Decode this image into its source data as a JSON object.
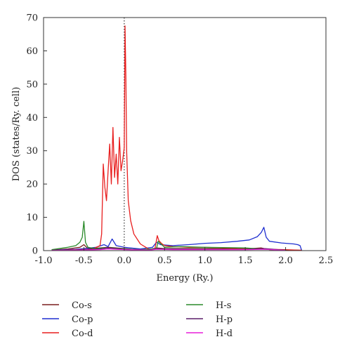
{
  "chart_data": {
    "type": "line",
    "xlabel": "Energy (Ry.)",
    "ylabel": "DOS (states/Ry. cell)",
    "xlim": [
      -1.0,
      2.5
    ],
    "ylim": [
      0,
      70
    ],
    "x_ticks": [
      "-1.0",
      "-0.5",
      "0.0",
      "0.5",
      "1.0",
      "1.5",
      "2.0",
      "2.5"
    ],
    "y_ticks": [
      "0",
      "10",
      "20",
      "30",
      "40",
      "50",
      "60",
      "70"
    ],
    "fermi_level": 0.0,
    "legend_placement": "bottom",
    "series": [
      {
        "name": "Co-s",
        "color": "#7a1f1f",
        "x": [
          -0.9,
          -0.7,
          -0.55,
          -0.5,
          -0.45,
          -0.3,
          -0.2,
          -0.1,
          0.0,
          0.1,
          0.3,
          0.4,
          0.5,
          0.7,
          1.0,
          1.3,
          1.5,
          1.7,
          1.8,
          2.0,
          2.2
        ],
        "y": [
          0.2,
          0.5,
          1.0,
          1.8,
          0.6,
          0.8,
          1.0,
          0.8,
          0.6,
          0.4,
          0.3,
          0.8,
          0.6,
          0.6,
          0.6,
          0.5,
          0.5,
          0.8,
          0.3,
          0.2,
          0.1
        ]
      },
      {
        "name": "Co-p",
        "color": "#1f2fd0",
        "x": [
          -0.9,
          -0.6,
          -0.5,
          -0.35,
          -0.25,
          -0.2,
          -0.15,
          -0.1,
          0.0,
          0.2,
          0.35,
          0.4,
          0.45,
          0.6,
          0.8,
          1.0,
          1.2,
          1.4,
          1.55,
          1.65,
          1.7,
          1.73,
          1.76,
          1.8,
          1.95,
          2.1,
          2.15,
          2.18,
          2.2
        ],
        "y": [
          0.2,
          0.4,
          0.6,
          1.0,
          1.8,
          1.2,
          3.5,
          1.5,
          1.0,
          0.5,
          1.0,
          2.5,
          1.8,
          1.5,
          1.8,
          2.2,
          2.4,
          2.8,
          3.2,
          4.2,
          5.5,
          7.0,
          4.0,
          2.8,
          2.3,
          2.0,
          1.8,
          1.5,
          0.0
        ]
      },
      {
        "name": "Co-d",
        "color": "#e81f1f",
        "x": [
          -0.9,
          -0.4,
          -0.3,
          -0.28,
          -0.26,
          -0.24,
          -0.22,
          -0.2,
          -0.18,
          -0.16,
          -0.14,
          -0.12,
          -0.1,
          -0.08,
          -0.06,
          -0.04,
          -0.02,
          0.0,
          0.01,
          0.02,
          0.03,
          0.05,
          0.08,
          0.12,
          0.2,
          0.3,
          0.38,
          0.41,
          0.43,
          0.46,
          0.5,
          0.6,
          0.8,
          1.0,
          1.2,
          1.4,
          1.6,
          1.8,
          2.0,
          2.2
        ],
        "y": [
          0.1,
          0.4,
          1.5,
          5.0,
          26.0,
          19.0,
          15.0,
          24.0,
          32.0,
          20.0,
          37.0,
          22.0,
          29.0,
          20.0,
          34.0,
          24.0,
          27.0,
          31.0,
          67.5,
          52.0,
          30.0,
          15.0,
          9.0,
          5.0,
          2.0,
          0.5,
          0.5,
          4.5,
          3.0,
          2.2,
          1.5,
          1.2,
          1.0,
          1.0,
          0.8,
          0.6,
          0.5,
          0.4,
          0.3,
          0.1
        ]
      },
      {
        "name": "H-s",
        "color": "#2a8a2a",
        "x": [
          -0.9,
          -0.7,
          -0.6,
          -0.55,
          -0.52,
          -0.5,
          -0.48,
          -0.45,
          -0.35,
          -0.25,
          -0.15,
          0.0,
          0.2,
          0.4,
          0.42,
          0.5,
          0.7,
          1.0,
          1.5,
          1.75,
          2.0
        ],
        "y": [
          0.3,
          1.0,
          1.5,
          2.5,
          4.0,
          8.8,
          2.5,
          1.0,
          0.6,
          0.8,
          0.8,
          0.5,
          0.3,
          0.6,
          2.8,
          1.0,
          1.2,
          1.0,
          0.8,
          0.4,
          0.1
        ]
      },
      {
        "name": "H-p",
        "color": "#5c1f6a",
        "x": [
          -0.9,
          -0.5,
          -0.3,
          -0.2,
          0.0,
          0.3,
          0.4,
          0.6,
          1.0,
          1.5,
          1.75,
          2.0
        ],
        "y": [
          0.1,
          0.3,
          0.5,
          0.8,
          0.4,
          0.2,
          0.6,
          0.5,
          0.4,
          0.4,
          0.6,
          0.1
        ]
      },
      {
        "name": "H-d",
        "color": "#e81fd8",
        "x": [
          -0.9,
          -0.5,
          -0.3,
          -0.2,
          0.0,
          0.3,
          0.4,
          0.6,
          1.0,
          1.5,
          1.75,
          2.0
        ],
        "y": [
          0.05,
          0.2,
          0.3,
          0.5,
          0.3,
          0.15,
          0.4,
          0.3,
          0.3,
          0.3,
          0.4,
          0.05
        ]
      }
    ]
  }
}
